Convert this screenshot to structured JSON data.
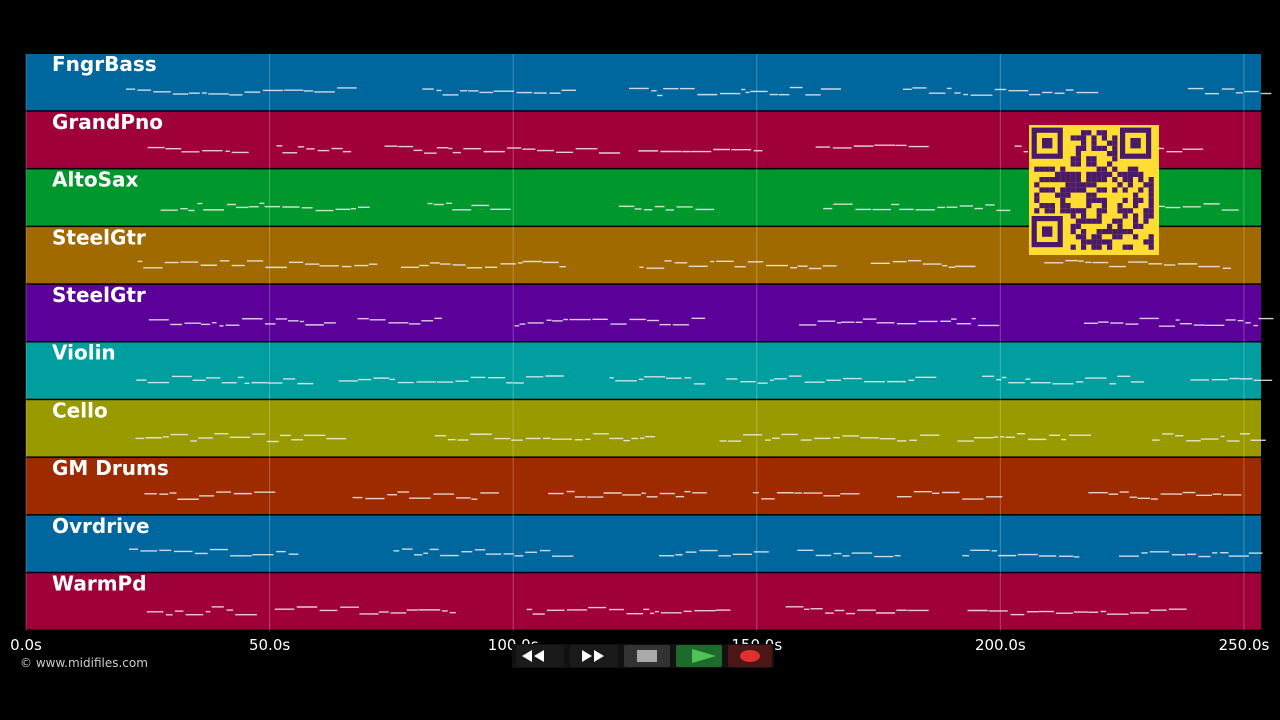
{
  "timeline": {
    "tracks": [
      {
        "name": "FngrBass",
        "color": "#00679e"
      },
      {
        "name": "GrandPno",
        "color": "#a0003a"
      },
      {
        "name": "AltoSax",
        "color": "#00982c"
      },
      {
        "name": "SteelGtr",
        "color": "#a06a00"
      },
      {
        "name": "SteelGtr",
        "color": "#5c009a"
      },
      {
        "name": "Violin",
        "color": "#009e9e"
      },
      {
        "name": "Cello",
        "color": "#999900"
      },
      {
        "name": "GM Drums",
        "color": "#9e2a00"
      },
      {
        "name": "Ovrdrive",
        "color": "#00679e"
      },
      {
        "name": "WarmPd",
        "color": "#a0003a"
      }
    ],
    "xlim": [
      0,
      253.5
    ],
    "xticks": [
      {
        "value": 0,
        "label": "0.0s"
      },
      {
        "value": 50,
        "label": "50.0s"
      },
      {
        "value": 100,
        "label": "100.0s"
      },
      {
        "value": 150,
        "label": "150.0s"
      },
      {
        "value": 200,
        "label": "200.0s"
      },
      {
        "value": 250,
        "label": "250.0s"
      }
    ],
    "credit": "© www.midifiles.com"
  }
}
